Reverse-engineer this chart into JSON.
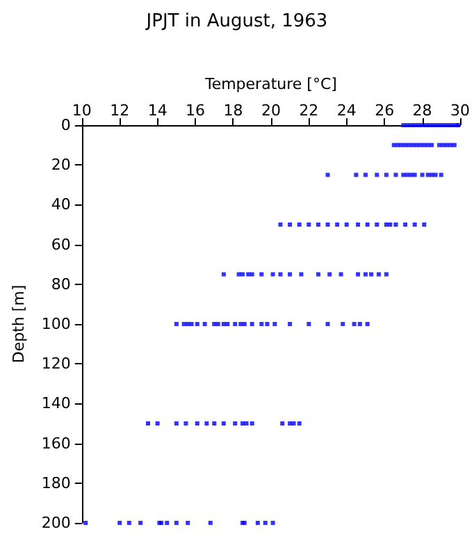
{
  "chart_data": {
    "type": "scatter",
    "title": "JPJT in August, 1963",
    "xlabel": "Temperature [°C]",
    "ylabel": "Depth [m]",
    "xlim": [
      10,
      30
    ],
    "xticks": [
      10,
      12,
      14,
      16,
      18,
      20,
      22,
      24,
      26,
      28,
      30
    ],
    "ylim": [
      200,
      0
    ],
    "yticks": [
      0,
      20,
      40,
      60,
      80,
      100,
      120,
      140,
      160,
      180,
      200
    ],
    "marker": "square",
    "series": [
      {
        "color": "#0000ff",
        "x": [
          27.0,
          27.2,
          27.4,
          27.6,
          27.8,
          28.0,
          28.2,
          28.4,
          28.6,
          28.8,
          29.0,
          29.2,
          29.4,
          29.6,
          29.8,
          29.9,
          26.5,
          26.7,
          26.9,
          27.1,
          27.3,
          27.5,
          27.7,
          27.9,
          28.1,
          28.3,
          28.5,
          28.9,
          29.1,
          29.3,
          29.5,
          29.7,
          23.0,
          24.5,
          25.0,
          25.6,
          26.1,
          26.6,
          27.0,
          27.2,
          27.4,
          27.6,
          28.0,
          28.3,
          28.5,
          28.7,
          29.0,
          20.5,
          21.0,
          21.5,
          22.0,
          22.5,
          23.0,
          23.5,
          24.0,
          24.6,
          25.1,
          25.6,
          26.1,
          26.3,
          26.6,
          27.1,
          27.6,
          28.1,
          17.5,
          18.3,
          18.5,
          18.8,
          19.0,
          19.5,
          20.1,
          20.5,
          21.0,
          21.6,
          22.5,
          23.1,
          23.7,
          24.6,
          25.0,
          25.3,
          25.7,
          26.1,
          15.0,
          15.4,
          15.6,
          15.8,
          16.1,
          16.5,
          17.0,
          17.2,
          17.5,
          17.7,
          18.1,
          18.4,
          18.6,
          19.0,
          19.5,
          19.8,
          20.2,
          21.0,
          22.0,
          23.0,
          23.8,
          24.4,
          24.7,
          25.1,
          13.5,
          14.0,
          15.0,
          15.5,
          16.1,
          16.6,
          17.0,
          17.5,
          18.1,
          18.5,
          18.7,
          19.0,
          20.6,
          21.0,
          21.2,
          21.5,
          10.2,
          12.0,
          12.5,
          13.1,
          14.1,
          14.2,
          14.5,
          15.0,
          15.6,
          16.8,
          18.5,
          18.6,
          19.3,
          19.7,
          20.1
        ],
        "values": [
          0,
          0,
          0,
          0,
          0,
          0,
          0,
          0,
          0,
          0,
          0,
          0,
          0,
          0,
          0,
          0,
          10,
          10,
          10,
          10,
          10,
          10,
          10,
          10,
          10,
          10,
          10,
          10,
          10,
          10,
          10,
          10,
          25,
          25,
          25,
          25,
          25,
          25,
          25,
          25,
          25,
          25,
          25,
          25,
          25,
          25,
          25,
          50,
          50,
          50,
          50,
          50,
          50,
          50,
          50,
          50,
          50,
          50,
          50,
          50,
          50,
          50,
          50,
          50,
          75,
          75,
          75,
          75,
          75,
          75,
          75,
          75,
          75,
          75,
          75,
          75,
          75,
          75,
          75,
          75,
          75,
          75,
          100,
          100,
          100,
          100,
          100,
          100,
          100,
          100,
          100,
          100,
          100,
          100,
          100,
          100,
          100,
          100,
          100,
          100,
          100,
          100,
          100,
          100,
          100,
          100,
          150,
          150,
          150,
          150,
          150,
          150,
          150,
          150,
          150,
          150,
          150,
          150,
          150,
          150,
          150,
          150,
          200,
          200,
          200,
          200,
          200,
          200,
          200,
          200,
          200,
          200,
          200,
          200,
          200,
          200,
          200
        ]
      }
    ]
  }
}
